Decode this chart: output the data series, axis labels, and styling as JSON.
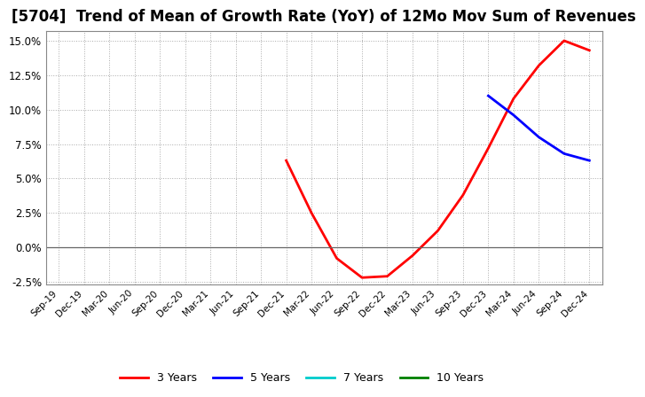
{
  "title": "[5704]  Trend of Mean of Growth Rate (YoY) of 12Mo Mov Sum of Revenues",
  "title_fontsize": 12,
  "background_color": "#ffffff",
  "plot_bg_color": "#ffffff",
  "grid_color": "#aaaaaa",
  "ylim": [
    -0.025,
    0.155
  ],
  "yticks": [
    -0.025,
    0.0,
    0.025,
    0.05,
    0.075,
    0.1,
    0.125,
    0.15
  ],
  "ytick_labels": [
    "-2.5%",
    "0.0%",
    "2.5%",
    "5.0%",
    "7.5%",
    "10.0%",
    "12.5%",
    "15.0%"
  ],
  "x_tick_labels": [
    "Sep-19",
    "Dec-19",
    "Mar-20",
    "Jun-20",
    "Sep-20",
    "Dec-20",
    "Mar-21",
    "Jun-21",
    "Sep-21",
    "Dec-21",
    "Mar-22",
    "Jun-22",
    "Sep-22",
    "Dec-22",
    "Mar-23",
    "Jun-23",
    "Sep-23",
    "Dec-23",
    "Mar-24",
    "Jun-24",
    "Sep-24",
    "Dec-24"
  ],
  "series_3y": {
    "label": "3 Years",
    "color": "#ff0000",
    "x_indices": [
      9,
      10,
      11,
      12,
      13,
      14,
      15,
      16,
      17,
      18,
      19,
      20,
      21
    ],
    "y": [
      0.063,
      0.025,
      -0.008,
      -0.022,
      -0.021,
      -0.006,
      0.012,
      0.038,
      0.072,
      0.108,
      0.132,
      0.15,
      0.143
    ]
  },
  "series_5y": {
    "label": "5 Years",
    "color": "#0000ff",
    "x_indices": [
      17,
      18,
      19,
      20,
      21
    ],
    "y": [
      0.11,
      0.096,
      0.08,
      0.068,
      0.063
    ]
  },
  "series_7y": {
    "label": "7 Years",
    "color": "#00cccc",
    "x_indices": [],
    "y": []
  },
  "series_10y": {
    "label": "10 Years",
    "color": "#008000",
    "x_indices": [],
    "y": []
  },
  "linewidth": 2.0
}
